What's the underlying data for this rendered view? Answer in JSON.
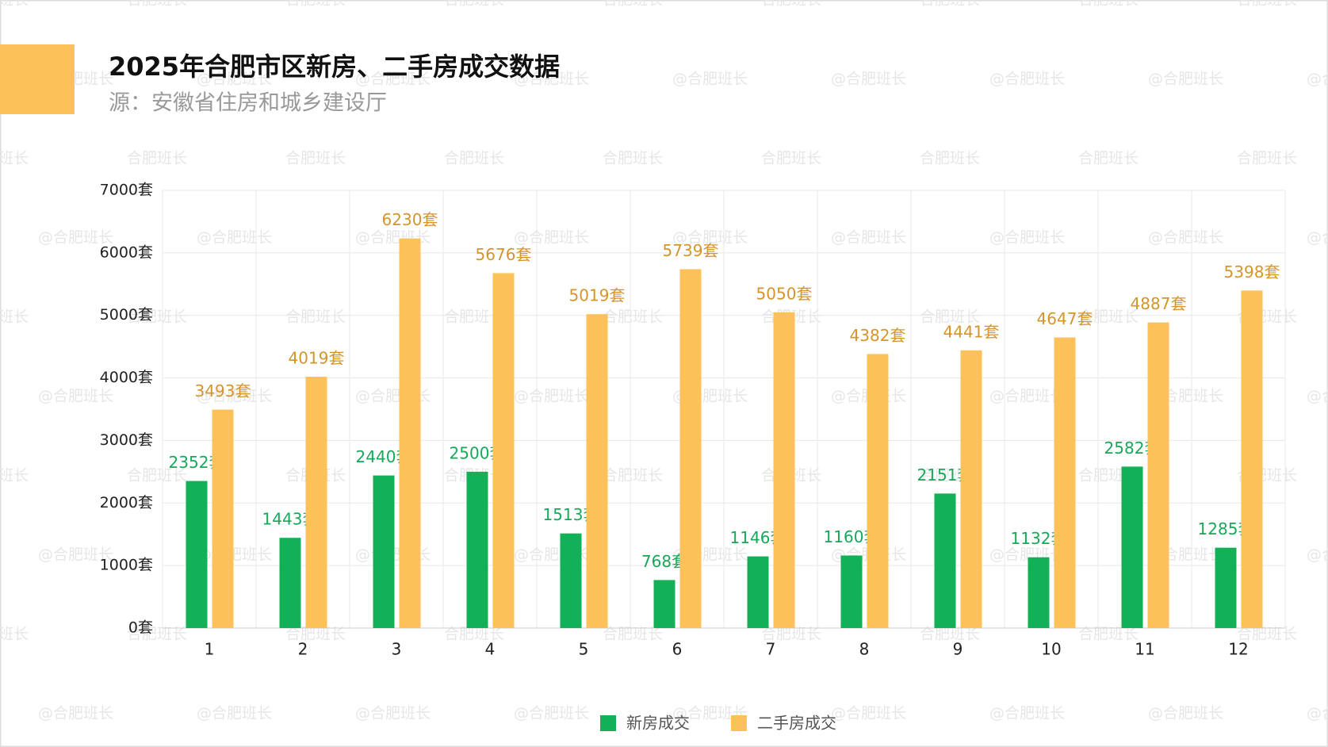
{
  "chart_data": {
    "type": "bar",
    "title": "2025年合肥市区新房、二手房成交数据",
    "subtitle": "源：安徽省住房和城乡建设厅",
    "watermarks": [
      "@合肥班长",
      "合肥班长"
    ],
    "categories": [
      "1",
      "2",
      "3",
      "4",
      "5",
      "6",
      "7",
      "8",
      "9",
      "10",
      "11",
      "12"
    ],
    "series": [
      {
        "name": "新房成交",
        "color": "#12b157",
        "label_color": "#17a85a",
        "values": [
          2352,
          1443,
          2440,
          2500,
          1513,
          768,
          1146,
          1160,
          2151,
          1132,
          2582,
          1285
        ],
        "value_labels": [
          "2352套",
          "1443套",
          "2440套",
          "2500套",
          "1513套",
          "768套",
          "1146套",
          "1160套",
          "2151套",
          "1132套",
          "2582套",
          "1285套"
        ]
      },
      {
        "name": "二手房成交",
        "color": "#fdc15a",
        "label_color": "#d4952a",
        "values": [
          3493,
          4019,
          6230,
          5676,
          5019,
          5739,
          5050,
          4382,
          4441,
          4647,
          4887,
          5398
        ],
        "value_labels": [
          "3493套",
          "4019套",
          "6230套",
          "5676套",
          "5019套",
          "5739套",
          "5050套",
          "4382套",
          "4441套",
          "4647套",
          "4887套",
          "5398套"
        ]
      }
    ],
    "ylim": [
      0,
      7000
    ],
    "yticks": [
      {
        "value": 0,
        "label": "0套"
      },
      {
        "value": 1000,
        "label": "1000套"
      },
      {
        "value": 2000,
        "label": "2000套"
      },
      {
        "value": 3000,
        "label": "3000套"
      },
      {
        "value": 4000,
        "label": "4000套"
      },
      {
        "value": 5000,
        "label": "5000套"
      },
      {
        "value": 6000,
        "label": "6000套"
      },
      {
        "value": 7000,
        "label": "7000套"
      }
    ],
    "grid": true
  }
}
